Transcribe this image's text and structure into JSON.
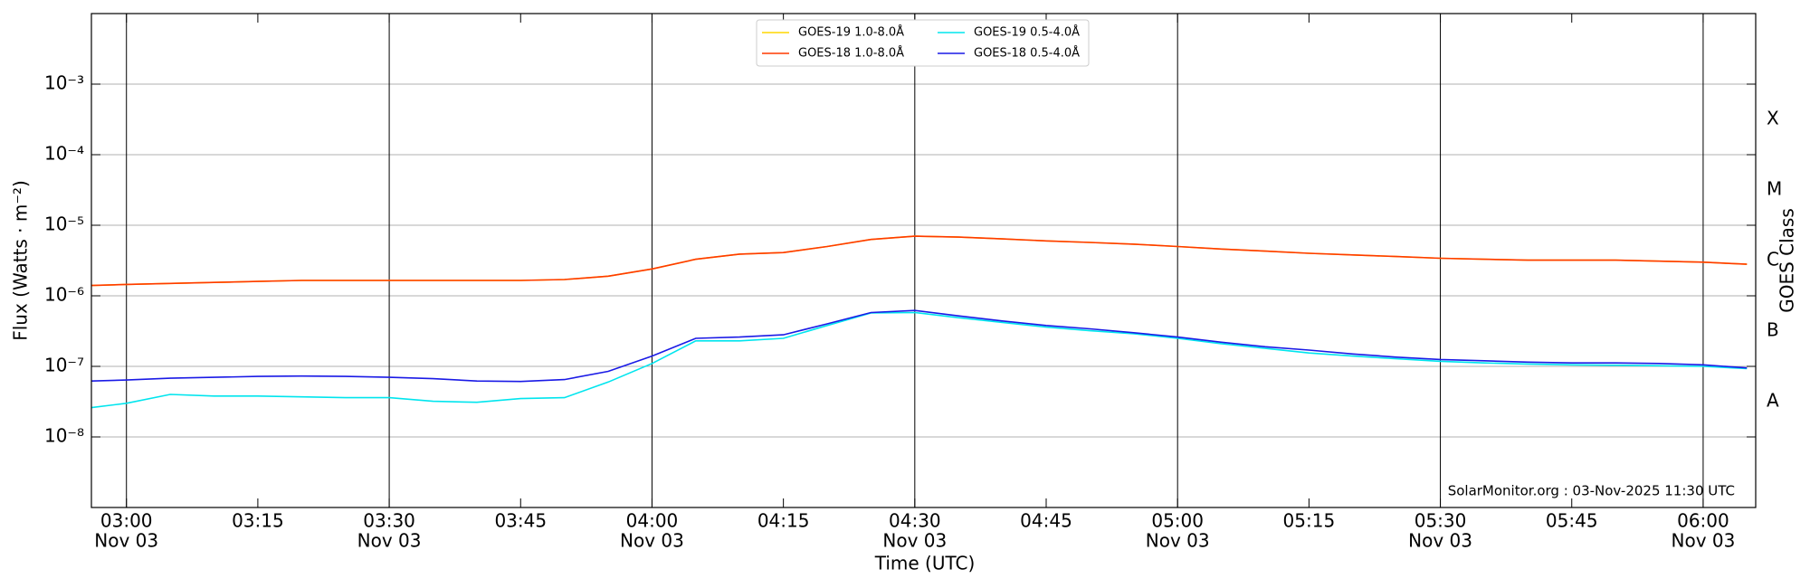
{
  "chart_data": {
    "type": "line",
    "x": [
      "02:56",
      "03:00",
      "03:05",
      "03:10",
      "03:15",
      "03:20",
      "03:25",
      "03:30",
      "03:35",
      "03:40",
      "03:45",
      "03:50",
      "03:55",
      "04:00",
      "04:05",
      "04:10",
      "04:15",
      "04:20",
      "04:25",
      "04:30",
      "04:35",
      "04:40",
      "04:45",
      "04:50",
      "04:55",
      "05:00",
      "05:05",
      "05:10",
      "05:15",
      "05:20",
      "05:25",
      "05:30",
      "05:35",
      "05:40",
      "05:45",
      "05:50",
      "05:55",
      "06:00",
      "06:05"
    ],
    "series": [
      {
        "name": "GOES-19 1.0-8.0Å",
        "color": "#ffd700",
        "values": [
          1.4e-06,
          1.45e-06,
          1.5e-06,
          1.55e-06,
          1.6e-06,
          1.65e-06,
          1.65e-06,
          1.65e-06,
          1.65e-06,
          1.65e-06,
          1.65e-06,
          1.7e-06,
          1.9e-06,
          2.4e-06,
          3.3e-06,
          3.9e-06,
          4.1e-06,
          5e-06,
          6.3e-06,
          7e-06,
          6.8e-06,
          6.4e-06,
          6e-06,
          5.7e-06,
          5.4e-06,
          5e-06,
          4.6e-06,
          4.3e-06,
          4e-06,
          3.8e-06,
          3.6e-06,
          3.4e-06,
          3.3e-06,
          3.2e-06,
          3.2e-06,
          3.2e-06,
          3.1e-06,
          3e-06,
          2.8e-06
        ]
      },
      {
        "name": "GOES-18 1.0-8.0Å",
        "color": "#ff3a00",
        "values": [
          1.4e-06,
          1.45e-06,
          1.5e-06,
          1.55e-06,
          1.6e-06,
          1.65e-06,
          1.65e-06,
          1.65e-06,
          1.65e-06,
          1.65e-06,
          1.65e-06,
          1.7e-06,
          1.9e-06,
          2.4e-06,
          3.3e-06,
          3.9e-06,
          4.1e-06,
          5e-06,
          6.3e-06,
          7e-06,
          6.8e-06,
          6.4e-06,
          6e-06,
          5.7e-06,
          5.4e-06,
          5e-06,
          4.6e-06,
          4.3e-06,
          4e-06,
          3.8e-06,
          3.6e-06,
          3.4e-06,
          3.3e-06,
          3.2e-06,
          3.2e-06,
          3.2e-06,
          3.1e-06,
          3e-06,
          2.8e-06
        ]
      },
      {
        "name": "GOES-19 0.5-4.0Å",
        "color": "#00e5ee",
        "values": [
          2.6e-08,
          3e-08,
          4e-08,
          3.8e-08,
          3.8e-08,
          3.7e-08,
          3.6e-08,
          3.6e-08,
          3.2e-08,
          3.1e-08,
          3.5e-08,
          3.6e-08,
          6e-08,
          1.1e-07,
          2.3e-07,
          2.3e-07,
          2.5e-07,
          3.8e-07,
          5.7e-07,
          5.8e-07,
          4.9e-07,
          4.2e-07,
          3.6e-07,
          3.2e-07,
          2.9e-07,
          2.5e-07,
          2.1e-07,
          1.8e-07,
          1.55e-07,
          1.4e-07,
          1.28e-07,
          1.18e-07,
          1.12e-07,
          1.08e-07,
          1.05e-07,
          1.04e-07,
          1.02e-07,
          1e-07,
          9.3e-08
        ]
      },
      {
        "name": "GOES-18 0.5-4.0Å",
        "color": "#1a1ae6",
        "values": [
          6.2e-08,
          6.4e-08,
          6.8e-08,
          7e-08,
          7.2e-08,
          7.3e-08,
          7.2e-08,
          7e-08,
          6.7e-08,
          6.2e-08,
          6.1e-08,
          6.5e-08,
          8.5e-08,
          1.4e-07,
          2.5e-07,
          2.6e-07,
          2.8e-07,
          4e-07,
          5.8e-07,
          6.2e-07,
          5.2e-07,
          4.4e-07,
          3.8e-07,
          3.4e-07,
          3e-07,
          2.6e-07,
          2.2e-07,
          1.9e-07,
          1.7e-07,
          1.5e-07,
          1.35e-07,
          1.25e-07,
          1.2e-07,
          1.15e-07,
          1.12e-07,
          1.12e-07,
          1.1e-07,
          1.05e-07,
          9.5e-08
        ]
      }
    ],
    "xlabel": "Time (UTC)",
    "ylabel": "Flux (Watts · m⁻²)",
    "y2label": "GOES Class",
    "log_y": true,
    "xlim": [
      "02:56",
      "06:06"
    ],
    "xticks": [
      {
        "value": "03:00",
        "label": "03:00",
        "date": "Nov 03"
      },
      {
        "value": "03:15",
        "label": "03:15"
      },
      {
        "value": "03:30",
        "label": "03:30",
        "date": "Nov 03"
      },
      {
        "value": "03:45",
        "label": "03:45"
      },
      {
        "value": "04:00",
        "label": "04:00",
        "date": "Nov 03"
      },
      {
        "value": "04:15",
        "label": "04:15"
      },
      {
        "value": "04:30",
        "label": "04:30",
        "date": "Nov 03"
      },
      {
        "value": "04:45",
        "label": "04:45"
      },
      {
        "value": "05:00",
        "label": "05:00",
        "date": "Nov 03"
      },
      {
        "value": "05:15",
        "label": "05:15"
      },
      {
        "value": "05:30",
        "label": "05:30",
        "date": "Nov 03"
      },
      {
        "value": "05:45",
        "label": "05:45"
      },
      {
        "value": "06:00",
        "label": "06:00",
        "date": "Nov 03"
      }
    ],
    "ylim": [
      1e-09,
      0.01
    ],
    "yticks": [
      {
        "value": 1e-08,
        "label": "10⁻⁸"
      },
      {
        "value": 1e-07,
        "label": "10⁻⁷"
      },
      {
        "value": 1e-06,
        "label": "10⁻⁶"
      },
      {
        "value": 1e-05,
        "label": "10⁻⁵"
      },
      {
        "value": 0.0001,
        "label": "10⁻⁴"
      },
      {
        "value": 0.001,
        "label": "10⁻³"
      }
    ],
    "y2lim": [
      1e-09,
      0.01
    ],
    "y2ticks": [
      {
        "value": 3.16e-08,
        "label": "A"
      },
      {
        "value": 3.16e-07,
        "label": "B"
      },
      {
        "value": 3.16e-06,
        "label": "C"
      },
      {
        "value": 3.16e-05,
        "label": "M"
      },
      {
        "value": 0.000316,
        "label": "X"
      }
    ],
    "grid": true,
    "legend": "upper center",
    "annotation": "SolarMonitor.org : 03-Nov-2025 11:30 UTC"
  }
}
